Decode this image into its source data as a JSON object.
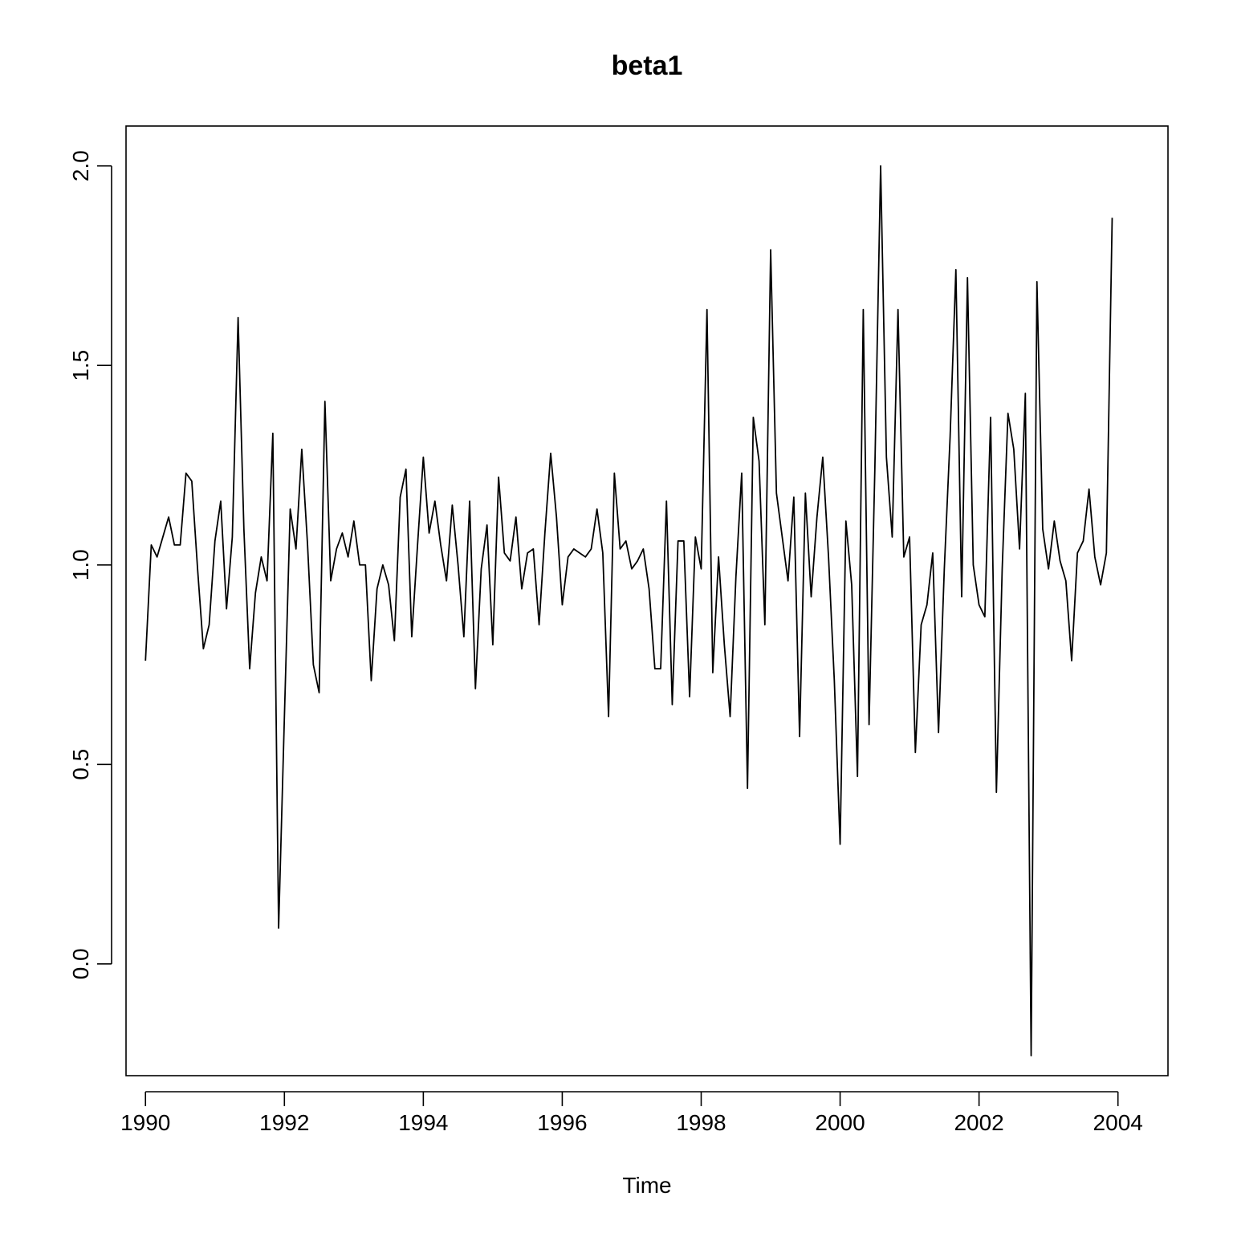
{
  "chart_data": {
    "type": "line",
    "title": "beta1",
    "xlabel": "Time",
    "ylabel": "",
    "xlim": [
      1989.72,
      2004.72
    ],
    "ylim": [
      -0.28,
      2.1
    ],
    "x_ticks": [
      1990,
      1992,
      1994,
      1996,
      1998,
      2000,
      2002,
      2004
    ],
    "x_tick_labels": [
      "1990",
      "1992",
      "1994",
      "1996",
      "1998",
      "2000",
      "2002",
      "2004"
    ],
    "y_ticks": [
      0.0,
      0.5,
      1.0,
      1.5,
      2.0
    ],
    "y_tick_labels": [
      "0.0",
      "0.5",
      "1.0",
      "1.5",
      "2.0"
    ],
    "grid": false,
    "series": [
      {
        "start": 1990,
        "frequency": 12,
        "values": [
          0.76,
          1.05,
          1.02,
          1.07,
          1.12,
          1.05,
          1.05,
          1.23,
          1.21,
          0.99,
          0.79,
          0.85,
          1.06,
          1.16,
          0.89,
          1.07,
          1.62,
          1.09,
          0.74,
          0.93,
          1.02,
          0.96,
          1.33,
          0.09,
          0.62,
          1.14,
          1.04,
          1.29,
          1.05,
          0.75,
          0.68,
          1.41,
          0.96,
          1.04,
          1.08,
          1.02,
          1.11,
          1.0,
          1.0,
          0.71,
          0.94,
          1.0,
          0.95,
          0.81,
          1.17,
          1.24,
          0.82,
          1.05,
          1.27,
          1.08,
          1.16,
          1.05,
          0.96,
          1.15,
          1.0,
          0.82,
          1.16,
          0.69,
          0.99,
          1.1,
          0.8,
          1.22,
          1.03,
          1.01,
          1.12,
          0.94,
          1.03,
          1.04,
          0.85,
          1.08,
          1.28,
          1.12,
          0.9,
          1.02,
          1.04,
          1.03,
          1.02,
          1.04,
          1.14,
          1.03,
          0.62,
          1.23,
          1.04,
          1.06,
          0.99,
          1.01,
          1.04,
          0.94,
          0.74,
          0.74,
          1.16,
          0.65,
          1.06,
          1.06,
          0.67,
          1.07,
          0.99,
          1.64,
          0.73,
          1.02,
          0.8,
          0.62,
          0.97,
          1.23,
          0.44,
          1.37,
          1.26,
          0.85,
          1.79,
          1.18,
          1.07,
          0.96,
          1.17,
          0.57,
          1.18,
          0.92,
          1.12,
          1.27,
          1.02,
          0.71,
          0.3,
          1.11,
          0.95,
          0.47,
          1.64,
          0.6,
          1.24,
          2.0,
          1.27,
          1.07,
          1.64,
          1.02,
          1.07,
          0.53,
          0.85,
          0.9,
          1.03,
          0.58,
          0.99,
          1.32,
          1.74,
          0.92,
          1.72,
          1.0,
          0.9,
          0.87,
          1.37,
          0.43,
          0.99,
          1.38,
          1.29,
          1.04,
          1.43,
          -0.23,
          1.71,
          1.09,
          0.99,
          1.11,
          1.01,
          0.96,
          0.76,
          1.03,
          1.06,
          1.19,
          1.02,
          0.95,
          1.03,
          1.87
        ]
      }
    ]
  }
}
